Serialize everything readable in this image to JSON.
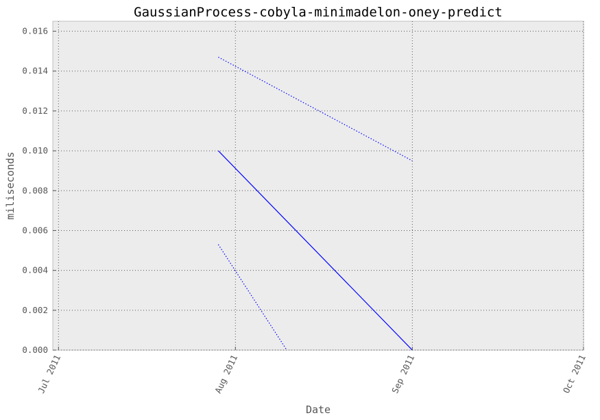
{
  "chart_data": {
    "type": "line",
    "title": "GaussianProcess-cobyla-minimadelon-oney-predict",
    "xlabel": "Date",
    "ylabel": "miliseconds",
    "xlim": [
      "2011-06-30",
      "2011-10-01"
    ],
    "ylim": [
      0,
      0.0165
    ],
    "x_ticks": [
      {
        "date": "2011-07-01",
        "label": "Jul 2011"
      },
      {
        "date": "2011-08-01",
        "label": "Aug 2011"
      },
      {
        "date": "2011-09-01",
        "label": "Sep 2011"
      },
      {
        "date": "2011-10-01",
        "label": "Oct 2011"
      }
    ],
    "y_ticks": [
      {
        "value": 0,
        "label": "0.000"
      },
      {
        "value": 0.002,
        "label": "0.002"
      },
      {
        "value": 0.004,
        "label": "0.004"
      },
      {
        "value": 0.006,
        "label": "0.006"
      },
      {
        "value": 0.008,
        "label": "0.008"
      },
      {
        "value": 0.01,
        "label": "0.010"
      },
      {
        "value": 0.012,
        "label": "0.012"
      },
      {
        "value": 0.014,
        "label": "0.014"
      },
      {
        "value": 0.016,
        "label": "0.016"
      }
    ],
    "grid": true,
    "series": [
      {
        "style": "solid",
        "color": "#0000ff",
        "points": [
          {
            "x": "2011-07-29",
            "y": 0.01
          },
          {
            "x": "2011-09-01",
            "y": 0.0
          }
        ]
      },
      {
        "style": "dotted",
        "color": "#0000ff",
        "points": [
          {
            "x": "2011-07-29",
            "y": 0.0147
          },
          {
            "x": "2011-09-01",
            "y": 0.0095
          }
        ]
      },
      {
        "style": "dotted",
        "color": "#0000ff",
        "points": [
          {
            "x": "2011-07-29",
            "y": 0.0053
          },
          {
            "x": "2011-08-10",
            "y": 0.0
          }
        ]
      }
    ]
  }
}
